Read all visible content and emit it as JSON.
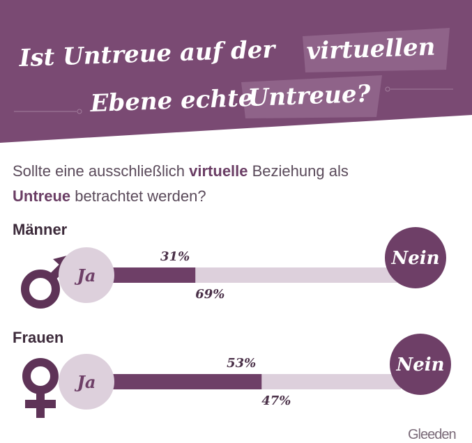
{
  "title": {
    "line1_a": "Ist Untreue auf der",
    "line1_b": "virtuellen",
    "line2_a": "Ebene echte",
    "line2_b": "Untreue?"
  },
  "question": {
    "part1": "Sollte eine ausschließlich ",
    "part2": "virtuelle",
    "part3": " Beziehung als",
    "part4": "Untreue",
    "part5": " betrachtet werden?"
  },
  "chart_data": {
    "type": "bar",
    "title": "Ist Untreue auf der virtuellen Ebene echte Untreue?",
    "subtitle": "Sollte eine ausschließlich virtuelle Beziehung als Untreue betrachtet werden?",
    "categories": [
      "Männer",
      "Frauen"
    ],
    "stacked": true,
    "series": [
      {
        "name": "Ja",
        "values": [
          31,
          53
        ],
        "labels": [
          "31%",
          "53%"
        ]
      },
      {
        "name": "Nein",
        "values": [
          69,
          47
        ],
        "labels": [
          "69%",
          "47%"
        ]
      }
    ],
    "ylim": [
      0,
      100
    ],
    "colors": {
      "ja": "#6e3f67",
      "nein": "#ddd0dc"
    },
    "icons": [
      "male-symbol",
      "female-symbol"
    ]
  },
  "labels": {
    "ja": "Ja",
    "nein": "Nein"
  },
  "logo": "Gleeden"
}
